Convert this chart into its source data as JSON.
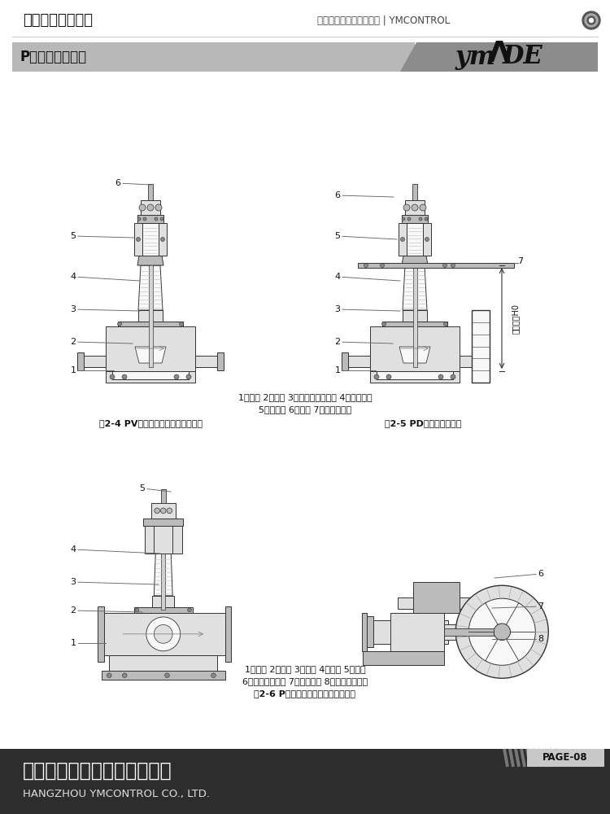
{
  "bg_color": "#ffffff",
  "header_text_left": "直行程调节阀系列",
  "header_text_right": "控制阀、减压阀选型手册 | YMCONTROL",
  "banner_title": "P系列单座调节阀",
  "caption1": "1、阀体 2、阀座 3、阀芯波纹管部件 4、阀盖部件",
  "caption2": "5、上阀盖 6、填料 7、冷箱安装板",
  "fig_label1": "图2-4 PV型波纹管密封型单座调节阀",
  "fig_label2": "图2-5 PD型低温型调节阀",
  "caption3": "1、阀体 2、阀座 3、阀芯 4、阀盖 5、填料",
  "caption4": "6、进口热媒法兰 7、阀体法兰 8、出口热媒法兰",
  "fig_label3": "图2-6 P型蒸汽夹套保温型单座调节阀",
  "company_cn": "杭州冨阳永明控制阀有限公司",
  "company_en": "HANGZHOU YMCONTROL CO., LTD.",
  "page_num": "PAGE-08"
}
